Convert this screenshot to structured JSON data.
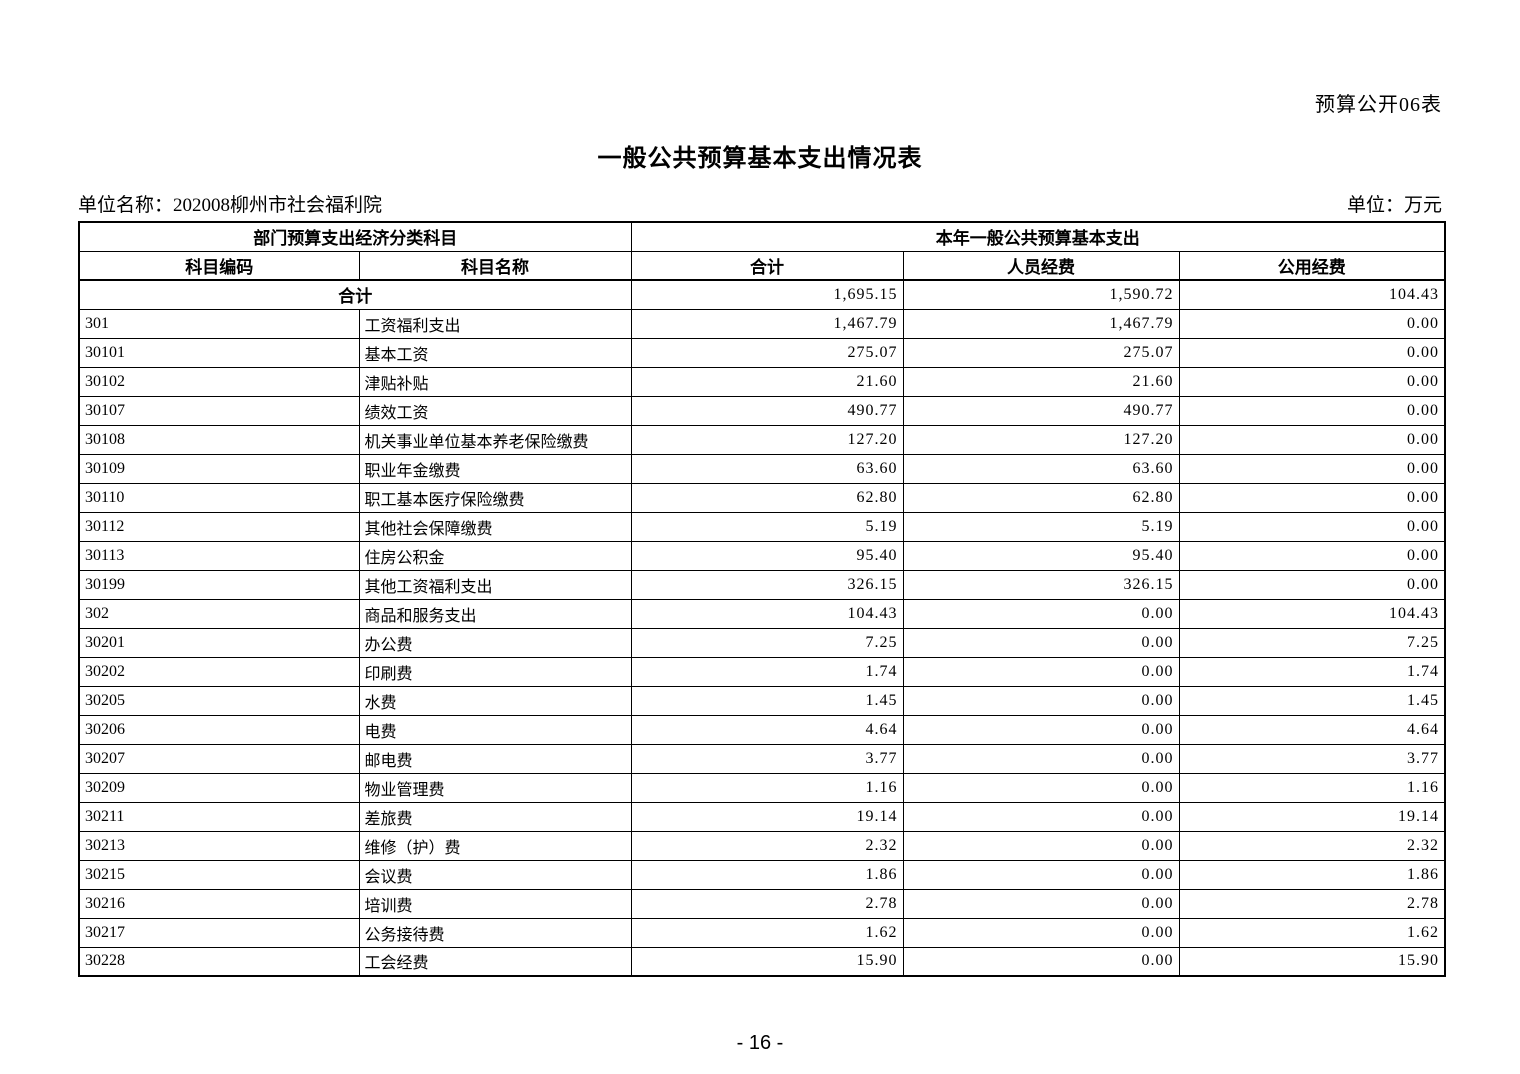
{
  "page": {
    "doc_label": "预算公开06表",
    "title": "一般公共预算基本支出情况表",
    "unit_name": "单位名称：202008柳州市社会福利院",
    "unit_label": "单位：万元",
    "page_number": "- 16 -"
  },
  "table": {
    "group_headers": {
      "left": "部门预算支出经济分类科目",
      "right": "本年一般公共预算基本支出"
    },
    "columns": [
      "科目编码",
      "科目名称",
      "合计",
      "人员经费",
      "公用经费"
    ],
    "total_row": {
      "label": "合计",
      "total": "1,695.15",
      "personnel": "1,590.72",
      "public": "104.43"
    },
    "rows": [
      {
        "code": "301",
        "name": "工资福利支出",
        "total": "1,467.79",
        "personnel": "1,467.79",
        "public": "0.00"
      },
      {
        "code": "30101",
        "name": "基本工资",
        "total": "275.07",
        "personnel": "275.07",
        "public": "0.00"
      },
      {
        "code": "30102",
        "name": "津贴补贴",
        "total": "21.60",
        "personnel": "21.60",
        "public": "0.00"
      },
      {
        "code": "30107",
        "name": "绩效工资",
        "total": "490.77",
        "personnel": "490.77",
        "public": "0.00"
      },
      {
        "code": "30108",
        "name": "机关事业单位基本养老保险缴费",
        "total": "127.20",
        "personnel": "127.20",
        "public": "0.00"
      },
      {
        "code": "30109",
        "name": "职业年金缴费",
        "total": "63.60",
        "personnel": "63.60",
        "public": "0.00"
      },
      {
        "code": "30110",
        "name": "职工基本医疗保险缴费",
        "total": "62.80",
        "personnel": "62.80",
        "public": "0.00"
      },
      {
        "code": "30112",
        "name": "其他社会保障缴费",
        "total": "5.19",
        "personnel": "5.19",
        "public": "0.00"
      },
      {
        "code": "30113",
        "name": "住房公积金",
        "total": "95.40",
        "personnel": "95.40",
        "public": "0.00"
      },
      {
        "code": "30199",
        "name": "其他工资福利支出",
        "total": "326.15",
        "personnel": "326.15",
        "public": "0.00"
      },
      {
        "code": "302",
        "name": "商品和服务支出",
        "total": "104.43",
        "personnel": "0.00",
        "public": "104.43"
      },
      {
        "code": "30201",
        "name": "办公费",
        "total": "7.25",
        "personnel": "0.00",
        "public": "7.25"
      },
      {
        "code": "30202",
        "name": "印刷费",
        "total": "1.74",
        "personnel": "0.00",
        "public": "1.74"
      },
      {
        "code": "30205",
        "name": "水费",
        "total": "1.45",
        "personnel": "0.00",
        "public": "1.45"
      },
      {
        "code": "30206",
        "name": "电费",
        "total": "4.64",
        "personnel": "0.00",
        "public": "4.64"
      },
      {
        "code": "30207",
        "name": "邮电费",
        "total": "3.77",
        "personnel": "0.00",
        "public": "3.77"
      },
      {
        "code": "30209",
        "name": "物业管理费",
        "total": "1.16",
        "personnel": "0.00",
        "public": "1.16"
      },
      {
        "code": "30211",
        "name": "差旅费",
        "total": "19.14",
        "personnel": "0.00",
        "public": "19.14"
      },
      {
        "code": "30213",
        "name": "维修（护）费",
        "total": "2.32",
        "personnel": "0.00",
        "public": "2.32"
      },
      {
        "code": "30215",
        "name": "会议费",
        "total": "1.86",
        "personnel": "0.00",
        "public": "1.86"
      },
      {
        "code": "30216",
        "name": "培训费",
        "total": "2.78",
        "personnel": "0.00",
        "public": "2.78"
      },
      {
        "code": "30217",
        "name": "公务接待费",
        "total": "1.62",
        "personnel": "0.00",
        "public": "1.62"
      },
      {
        "code": "30228",
        "name": "工会经费",
        "total": "15.90",
        "personnel": "0.00",
        "public": "15.90"
      }
    ]
  }
}
